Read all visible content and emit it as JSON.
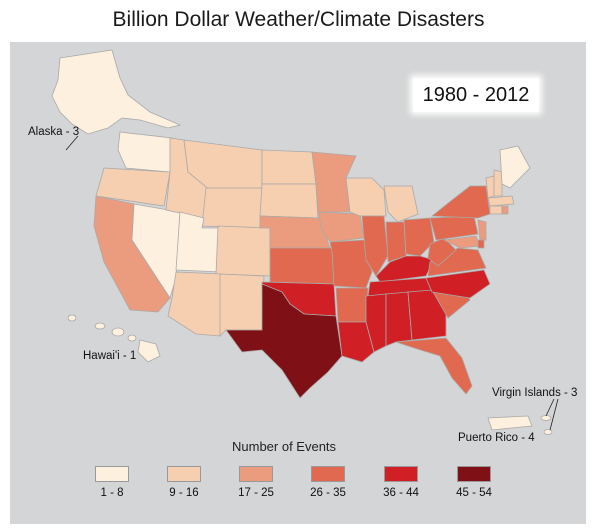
{
  "title": "Billion Dollar Weather/Climate Disasters",
  "period": "1980 - 2012",
  "territories": {
    "alaska": "Alaska - 3",
    "hawaii": "Hawai'i - 1",
    "virgin_islands": "Virgin Islands - 3",
    "puerto_rico": "Puerto Rico - 4"
  },
  "legend": {
    "title": "Number of Events",
    "items": [
      {
        "label": "1 - 8",
        "color": "#fdf0de"
      },
      {
        "label": "9 - 16",
        "color": "#f6cfb0"
      },
      {
        "label": "17 - 25",
        "color": "#ec9c7e"
      },
      {
        "label": "26 - 35",
        "color": "#e1694f"
      },
      {
        "label": "36 - 44",
        "color": "#d01f25"
      },
      {
        "label": "45 - 54",
        "color": "#7e1016"
      }
    ]
  },
  "colors": {
    "c1": "#fdf0de",
    "c2": "#f6cfb0",
    "c3": "#ec9c7e",
    "c4": "#e1694f",
    "c5": "#d01f25",
    "c6": "#7e1016"
  }
}
